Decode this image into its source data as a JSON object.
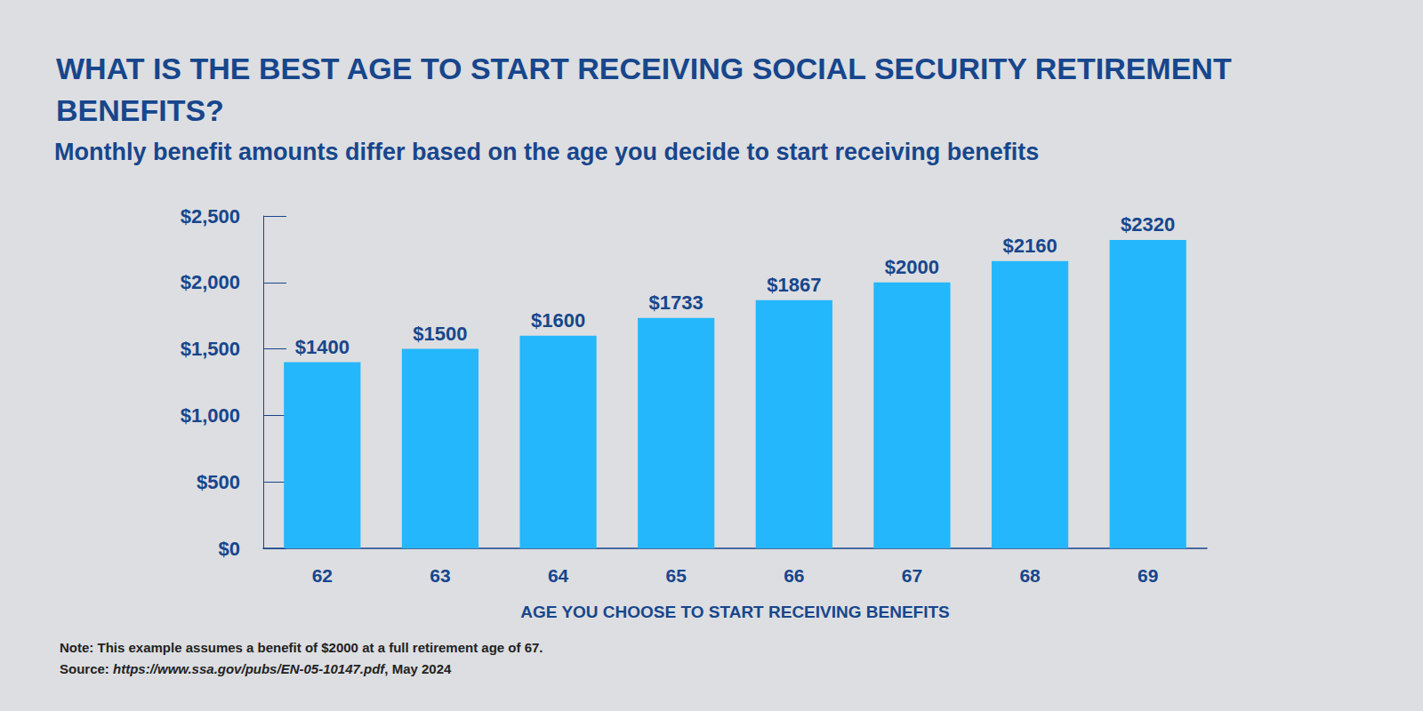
{
  "chart_data": {
    "type": "bar",
    "title": "WHAT IS THE BEST AGE TO START RECEIVING SOCIAL SECURITY RETIREMENT BENEFITS?",
    "subtitle": "Monthly benefit amounts differ based on the age you decide to start receiving benefits",
    "x_label": "AGE YOU CHOOSE TO START RECEIVING BENEFITS",
    "categories": [
      "62",
      "63",
      "64",
      "65",
      "66",
      "67",
      "68",
      "69"
    ],
    "values": [
      1400,
      1500,
      1600,
      1733,
      1867,
      2000,
      2160,
      2320
    ],
    "value_labels": [
      "$1400",
      "$1500",
      "$1600",
      "$1733",
      "$1867",
      "$2000",
      "$2160",
      "$2320"
    ],
    "color": "#24b7fb",
    "ylim": [
      0,
      2500
    ],
    "yticks": [
      {
        "value": 0,
        "label": "$0"
      },
      {
        "value": 500,
        "label": "$500"
      },
      {
        "value": 1000,
        "label": "$1,000"
      },
      {
        "value": 1500,
        "label": "$1,500"
      },
      {
        "value": 2000,
        "label": "$2,000"
      },
      {
        "value": 2500,
        "label": "$2,500"
      }
    ],
    "grid": false,
    "data_labels": true,
    "notes": [
      "Note: This example assumes a benefit of $2000 at a full retirement age of 67.",
      "Source: https://www.ssa.gov/pubs/EN-05-10147.pdf, May 2024"
    ]
  }
}
